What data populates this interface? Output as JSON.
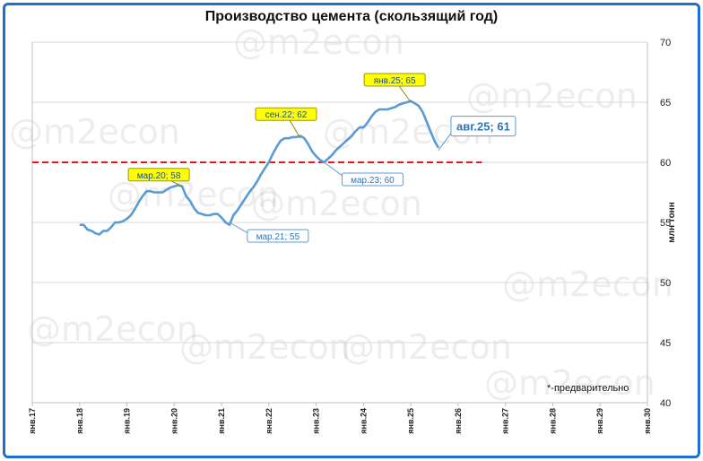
{
  "chart_data": {
    "type": "line",
    "title": "Производство цемента (скользящий год)",
    "ylabel": "млн тонн",
    "ylim": [
      40,
      70
    ],
    "yticks": [
      40,
      45,
      50,
      55,
      60,
      65,
      70
    ],
    "x_ticks": [
      "янв.17",
      "янв.18",
      "янв.19",
      "янв.20",
      "янв.21",
      "янв.22",
      "янв.23",
      "янв.24",
      "янв.25",
      "янв.26",
      "янв.27",
      "янв.28",
      "янв.29",
      "янв.30"
    ],
    "xlim_years": [
      2017,
      2030
    ],
    "grid": "horizontal",
    "series": [
      {
        "name": "",
        "color": "#5b9bd5",
        "x": [
          "2018-01",
          "2018-02",
          "2018-03",
          "2018-04",
          "2018-05",
          "2018-06",
          "2018-07",
          "2018-08",
          "2018-09",
          "2018-10",
          "2018-11",
          "2018-12",
          "2019-01",
          "2019-02",
          "2019-03",
          "2019-04",
          "2019-05",
          "2019-06",
          "2019-07",
          "2019-08",
          "2019-09",
          "2019-10",
          "2019-11",
          "2019-12",
          "2020-01",
          "2020-02",
          "2020-03",
          "2020-04",
          "2020-05",
          "2020-06",
          "2020-07",
          "2020-08",
          "2020-09",
          "2020-10",
          "2020-11",
          "2020-12",
          "2021-01",
          "2021-02",
          "2021-03",
          "2021-04",
          "2021-05",
          "2021-06",
          "2021-07",
          "2021-08",
          "2021-09",
          "2021-10",
          "2021-11",
          "2021-12",
          "2022-01",
          "2022-02",
          "2022-03",
          "2022-04",
          "2022-05",
          "2022-06",
          "2022-07",
          "2022-08",
          "2022-09",
          "2022-10",
          "2022-11",
          "2022-12",
          "2023-01",
          "2023-02",
          "2023-03",
          "2023-04",
          "2023-05",
          "2023-06",
          "2023-07",
          "2023-08",
          "2023-09",
          "2023-10",
          "2023-11",
          "2023-12",
          "2024-01",
          "2024-02",
          "2024-03",
          "2024-04",
          "2024-05",
          "2024-06",
          "2024-07",
          "2024-08",
          "2024-09",
          "2024-10",
          "2024-11",
          "2024-12",
          "2025-01",
          "2025-02",
          "2025-03",
          "2025-04",
          "2025-05",
          "2025-06",
          "2025-07",
          "2025-08"
        ],
        "values": [
          54.8,
          54.8,
          54.4,
          54.3,
          54.1,
          54.0,
          54.3,
          54.3,
          54.6,
          55.0,
          55.0,
          55.1,
          55.3,
          55.6,
          56.1,
          56.7,
          57.2,
          57.6,
          57.6,
          57.5,
          57.5,
          57.5,
          57.7,
          57.9,
          58.0,
          58.1,
          58.0,
          57.2,
          56.8,
          56.2,
          55.8,
          55.7,
          55.6,
          55.6,
          55.7,
          55.7,
          55.4,
          55.0,
          54.8,
          55.6,
          56.0,
          56.5,
          57.0,
          57.5,
          57.9,
          58.4,
          59.0,
          59.5,
          60.0,
          60.7,
          61.3,
          61.8,
          62.0,
          62.0,
          62.1,
          62.1,
          62.2,
          62.0,
          61.5,
          60.9,
          60.5,
          60.2,
          60.0,
          60.3,
          60.6,
          61.0,
          61.3,
          61.6,
          61.9,
          62.2,
          62.6,
          62.9,
          62.9,
          63.3,
          63.8,
          64.2,
          64.4,
          64.4,
          64.4,
          64.5,
          64.6,
          64.8,
          64.9,
          65.0,
          65.1,
          64.9,
          64.7,
          64.2,
          63.4,
          62.6,
          61.8,
          61.2
        ]
      }
    ],
    "reference_line": {
      "value": 60,
      "color": "#e31a1c",
      "style": "dashed",
      "x_start": "2017-01",
      "x_end": "2026-07"
    },
    "annotations": [
      {
        "text": "мар.20; 58",
        "x": "2020-03",
        "y": 58,
        "style": "highlight"
      },
      {
        "text": "мар.21; 55",
        "x": "2021-03",
        "y": 55,
        "style": "callout"
      },
      {
        "text": "сен.22; 62",
        "x": "2022-09",
        "y": 62,
        "style": "highlight"
      },
      {
        "text": "мар.23; 60",
        "x": "2023-03",
        "y": 60,
        "style": "callout"
      },
      {
        "text": "янв.25; 65",
        "x": "2025-01",
        "y": 65,
        "style": "highlight"
      },
      {
        "text": "авг.25; 61",
        "x": "2025-08",
        "y": 61,
        "style": "callout-large"
      }
    ],
    "footnote": "*-предварительно",
    "watermark": "@m2econ"
  }
}
